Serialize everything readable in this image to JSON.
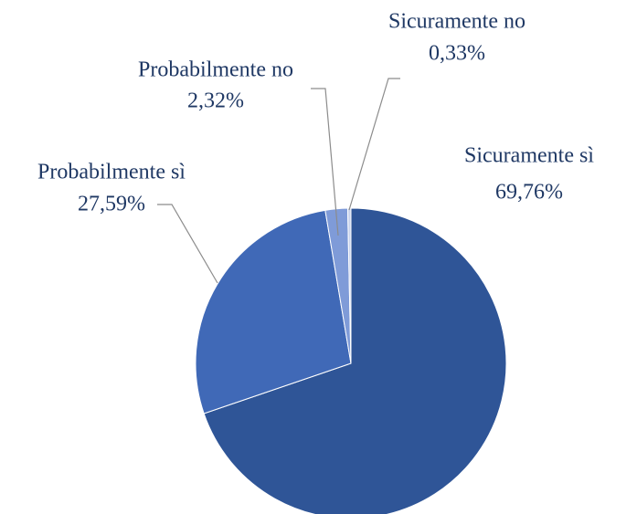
{
  "chart_data": {
    "type": "pie",
    "categories": [
      "Sicuramente sì",
      "Probabilmente sì",
      "Probabilmente no",
      "Sicuramente no"
    ],
    "values": [
      69.76,
      27.59,
      2.32,
      0.33
    ],
    "value_labels": [
      "69,76%",
      "27,59%",
      "2,32%",
      "0,33%"
    ],
    "colors": [
      "#2f5597",
      "#4069b7",
      "#7f9bd8",
      "#c9d3ec"
    ]
  }
}
